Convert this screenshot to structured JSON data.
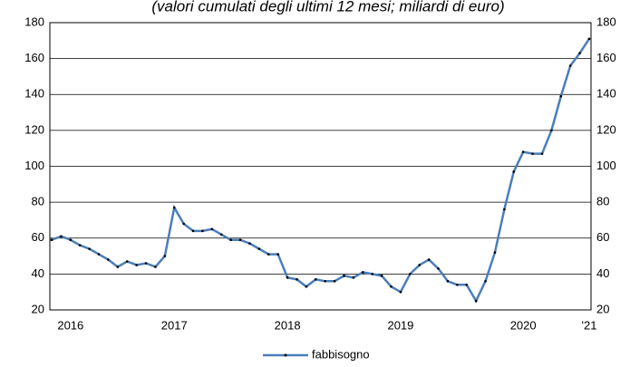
{
  "chart_data": {
    "type": "line",
    "title": "(valori cumulati degli ultimi 12 mesi; miliardi di euro)",
    "categories": [
      null,
      null,
      "2016",
      null,
      null,
      null,
      null,
      null,
      null,
      null,
      null,
      null,
      null,
      "2017",
      null,
      null,
      null,
      null,
      null,
      null,
      null,
      null,
      null,
      null,
      null,
      "2018",
      null,
      null,
      null,
      null,
      null,
      null,
      null,
      null,
      null,
      null,
      null,
      "2019",
      null,
      null,
      null,
      null,
      null,
      null,
      null,
      null,
      null,
      null,
      null,
      null,
      "2020",
      null,
      null,
      null,
      null,
      null,
      null,
      "'21"
    ],
    "series": [
      {
        "name": "fabbisogno",
        "color": "#4a7ebb",
        "values": [
          59,
          61,
          59,
          56,
          54,
          51,
          48,
          44,
          47,
          45,
          46,
          44,
          50,
          77,
          68,
          64,
          64,
          65,
          62,
          59,
          59,
          57,
          54,
          51,
          51,
          38,
          37,
          33,
          37,
          36,
          36,
          39,
          38,
          41,
          40,
          39,
          33,
          30,
          40,
          45,
          48,
          43,
          36,
          34,
          34,
          25,
          36,
          52,
          76,
          97,
          108,
          107,
          107,
          120,
          139,
          156,
          163,
          171
        ]
      }
    ],
    "ylim": [
      20,
      180
    ],
    "yticks": [
      20,
      40,
      60,
      80,
      100,
      120,
      140,
      160,
      180
    ],
    "grid": true,
    "legend": "bottom"
  }
}
